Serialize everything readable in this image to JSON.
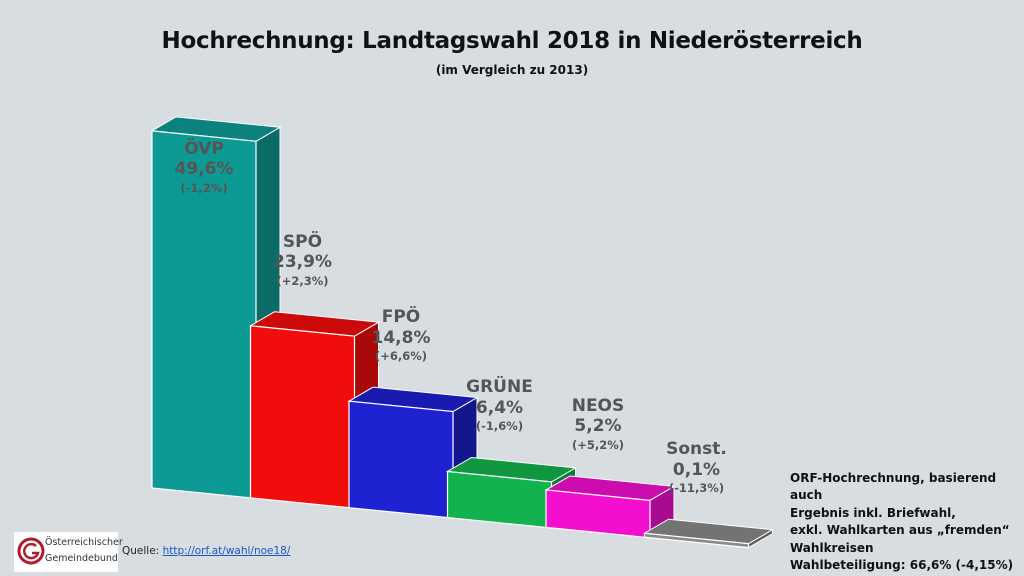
{
  "header": {
    "title": "Hochrechnung: Landtagswahl 2018 in Niederösterreich",
    "subtitle": "(im Vergleich zu 2013)"
  },
  "chart_data": {
    "type": "bar",
    "title": "Hochrechnung: Landtagswahl 2018 in Niederösterreich",
    "subtitle": "(im Vergleich zu 2013)",
    "xlabel": "",
    "ylabel": "",
    "ylim": [
      0,
      50
    ],
    "unit": "%",
    "categories": [
      "ÖVP",
      "SPÖ",
      "FPÖ",
      "GRÜNE",
      "NEOS",
      "Sonst."
    ],
    "values": [
      49.6,
      23.9,
      14.8,
      6.4,
      5.2,
      0.1
    ],
    "value_labels": [
      "49,6%",
      "23,9%",
      "14,8%",
      "6,4%",
      "5,2%",
      "0,1%"
    ],
    "change_labels": [
      "(-1,2%)",
      "(+2,3%)",
      "(+6,6%)",
      "(-1,6%)",
      "(+5,2%)",
      "(-11,3%)"
    ],
    "colors": [
      "#0e9a94",
      "#f20d0d",
      "#1f22d0",
      "#12b24e",
      "#f20fcf",
      "#8a8a8a"
    ],
    "side_colors": [
      "#0a6b67",
      "#a80808",
      "#14168e",
      "#0b7a35",
      "#a80a90",
      "#5e5e5e"
    ],
    "top_colors": [
      "#0b827d",
      "#cc0a0a",
      "#191bb0",
      "#0f963f",
      "#cc0cae",
      "#737373"
    ]
  },
  "note": {
    "lines": [
      "ORF-Hochrechnung, basierend auch",
      "Ergebnis inkl. Briefwahl,",
      "exkl. Wahlkarten aus „fremden“",
      "Wahlkreisen",
      "Wahlbeteiligung: 66,6% (-4,15%)"
    ]
  },
  "source": {
    "label": "Quelle:",
    "link_text": "http://orf.at/wahl/noe18/"
  },
  "logo": {
    "line1": "Österreichischer",
    "line2": "Gemeindebund",
    "brand_color": "#b01c2e"
  }
}
